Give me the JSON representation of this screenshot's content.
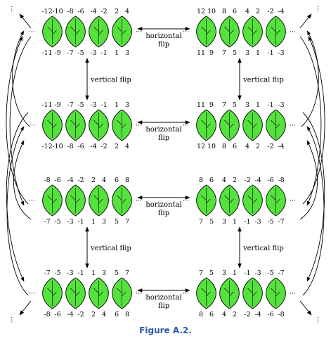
{
  "caption": "Figure A.2.",
  "flip_labels": {
    "horizontal": [
      "horizontal",
      "flip"
    ],
    "vertical": "vertical flip"
  },
  "ellipsis": "⋮",
  "dots": "···",
  "colors": {
    "leaf": "#55e23c",
    "stroke": "#000000",
    "caption": "#2a5aa8"
  },
  "rows": [
    {
      "name": "row-1",
      "left": {
        "top": [
          "-12",
          "-10",
          "-8",
          "-6",
          "-4",
          "-2",
          "2",
          "4"
        ],
        "bottom": [
          "-11",
          "-9",
          "-7",
          "-5",
          "-3",
          "-1",
          "1",
          "3"
        ]
      },
      "right": {
        "top": [
          "12",
          "10",
          "8",
          "6",
          "4",
          "2",
          "-2",
          "-4"
        ],
        "bottom": [
          "11",
          "9",
          "7",
          "5",
          "3",
          "1",
          "-1",
          "-3"
        ]
      }
    },
    {
      "name": "row-2",
      "left": {
        "top": [
          "-11",
          "-9",
          "-7",
          "-5",
          "-3",
          "-1",
          "1",
          "3"
        ],
        "bottom": [
          "-12",
          "-10",
          "-8",
          "-6",
          "-4",
          "-2",
          "2",
          "4"
        ]
      },
      "right": {
        "top": [
          "11",
          "9",
          "7",
          "5",
          "3",
          "1",
          "-1",
          "-3"
        ],
        "bottom": [
          "12",
          "10",
          "8",
          "6",
          "4",
          "2",
          "-2",
          "-4"
        ]
      }
    },
    {
      "name": "row-3",
      "left": {
        "top": [
          "-8",
          "-6",
          "-4",
          "-2",
          "2",
          "4",
          "6",
          "8"
        ],
        "bottom": [
          "-7",
          "-5",
          "-3",
          "-1",
          "1",
          "3",
          "5",
          "7"
        ]
      },
      "right": {
        "top": [
          "8",
          "6",
          "4",
          "2",
          "-2",
          "-4",
          "-6",
          "-8"
        ],
        "bottom": [
          "7",
          "5",
          "3",
          "1",
          "-1",
          "-3",
          "-5",
          "-7"
        ]
      }
    },
    {
      "name": "row-4",
      "left": {
        "top": [
          "-7",
          "-5",
          "-3",
          "-1",
          "1",
          "3",
          "5",
          "7"
        ],
        "bottom": [
          "-8",
          "-6",
          "-4",
          "-2",
          "2",
          "4",
          "6",
          "8"
        ]
      },
      "right": {
        "top": [
          "7",
          "5",
          "3",
          "1",
          "-1",
          "-3",
          "-5",
          "-7"
        ],
        "bottom": [
          "8",
          "6",
          "4",
          "2",
          "-2",
          "-4",
          "-6",
          "-8"
        ]
      }
    }
  ]
}
